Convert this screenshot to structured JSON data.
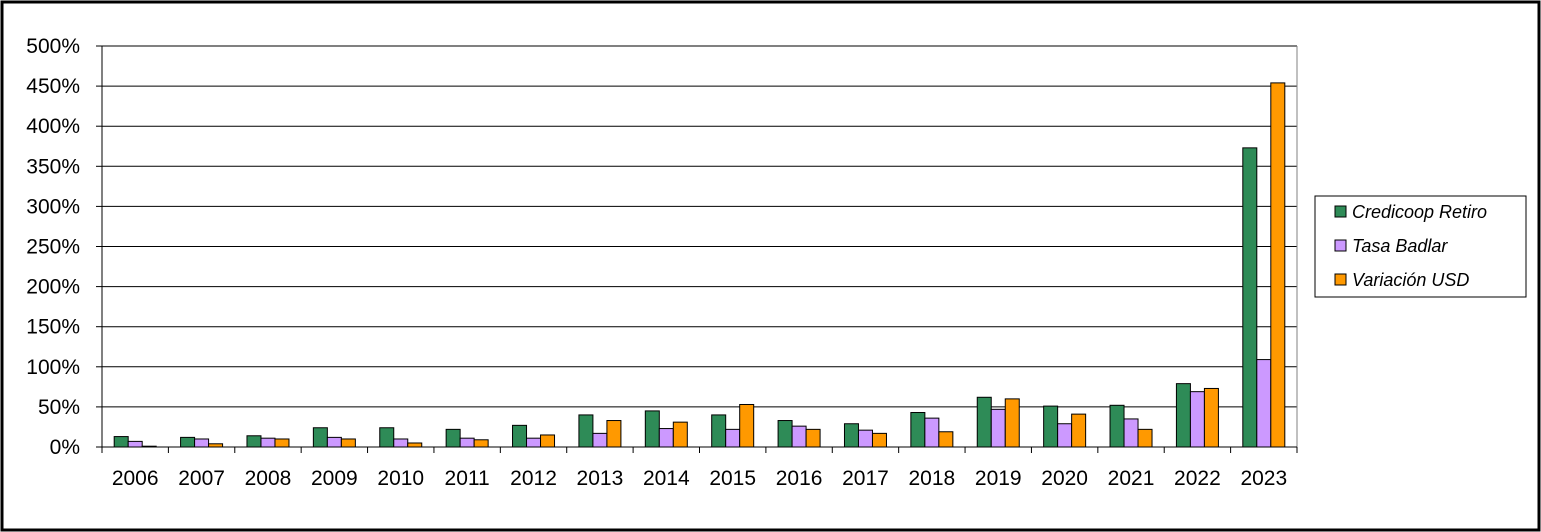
{
  "colors": {
    "background": "#ffffff",
    "frame": "#000000",
    "grid": "#000000"
  },
  "chart_data": {
    "type": "bar",
    "title": "",
    "xlabel": "",
    "ylabel": "",
    "ylim": [
      0,
      500
    ],
    "y_tick_step": 50,
    "y_tick_format": "percent",
    "grid": "horizontal-major",
    "legend_position": "right",
    "categories": [
      "2006",
      "2007",
      "2008",
      "2009",
      "2010",
      "2011",
      "2012",
      "2013",
      "2014",
      "2015",
      "2016",
      "2017",
      "2018",
      "2019",
      "2020",
      "2021",
      "2022",
      "2023"
    ],
    "series": [
      {
        "name": "Credicoop Retiro",
        "color": "#2e8b57",
        "values": [
          13,
          12,
          14,
          24,
          24,
          22,
          27,
          40,
          45,
          40,
          33,
          29,
          43,
          62,
          51,
          52,
          79,
          373
        ]
      },
      {
        "name": "Tasa Badlar",
        "color": "#cc99ff",
        "values": [
          7,
          10,
          11,
          12,
          10,
          11,
          11,
          17,
          23,
          22,
          26,
          21,
          36,
          47,
          29,
          35,
          69,
          109
        ]
      },
      {
        "name": "Variación USD",
        "color": "#ff9900",
        "values": [
          1,
          4,
          10,
          10,
          5,
          9,
          15,
          33,
          31,
          53,
          22,
          17,
          19,
          60,
          41,
          22,
          73,
          454
        ]
      }
    ]
  }
}
